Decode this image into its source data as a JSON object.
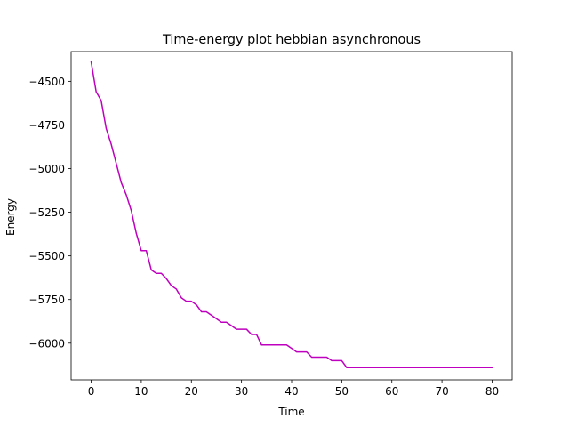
{
  "chart_data": {
    "type": "line",
    "title": "Time-energy plot hebbian asynchronous",
    "xlabel": "Time",
    "ylabel": "Energy",
    "xlim": [
      -4,
      84
    ],
    "ylim": [
      -6210,
      -4330
    ],
    "xticks": [
      0,
      10,
      20,
      30,
      40,
      50,
      60,
      70,
      80
    ],
    "yticks": [
      -4500,
      -4750,
      -5000,
      -5250,
      -5500,
      -5750,
      -6000
    ],
    "grid": false,
    "legend": "none",
    "series": [
      {
        "color": "#bf00bf",
        "x": [
          0,
          1,
          2,
          3,
          4,
          5,
          6,
          7,
          8,
          9,
          10,
          11,
          12,
          13,
          14,
          15,
          16,
          17,
          18,
          19,
          20,
          21,
          22,
          23,
          24,
          25,
          26,
          27,
          28,
          29,
          30,
          31,
          32,
          33,
          34,
          35,
          36,
          37,
          38,
          39,
          40,
          41,
          42,
          43,
          44,
          45,
          46,
          47,
          48,
          49,
          50,
          51,
          52,
          53,
          54,
          55,
          56,
          57,
          58,
          59,
          60,
          61,
          62,
          63,
          64,
          65,
          66,
          67,
          68,
          69,
          70,
          71,
          72,
          73,
          74,
          75,
          76,
          77,
          78,
          79,
          80
        ],
        "y": [
          -4390,
          -4560,
          -4610,
          -4770,
          -4860,
          -4970,
          -5080,
          -5150,
          -5240,
          -5370,
          -5470,
          -5470,
          -5580,
          -5600,
          -5600,
          -5630,
          -5670,
          -5690,
          -5740,
          -5760,
          -5760,
          -5780,
          -5820,
          -5820,
          -5840,
          -5860,
          -5880,
          -5880,
          -5900,
          -5920,
          -5920,
          -5920,
          -5950,
          -5950,
          -6010,
          -6010,
          -6010,
          -6010,
          -6010,
          -6010,
          -6030,
          -6050,
          -6050,
          -6050,
          -6080,
          -6080,
          -6080,
          -6080,
          -6100,
          -6100,
          -6100,
          -6140,
          -6140,
          -6140,
          -6140,
          -6140,
          -6140,
          -6140,
          -6140,
          -6140,
          -6140,
          -6140,
          -6140,
          -6140,
          -6140,
          -6140,
          -6140,
          -6140,
          -6140,
          -6140,
          -6140,
          -6140,
          -6140,
          -6140,
          -6140,
          -6140,
          -6140,
          -6140,
          -6140,
          -6140,
          -6140
        ]
      }
    ]
  }
}
